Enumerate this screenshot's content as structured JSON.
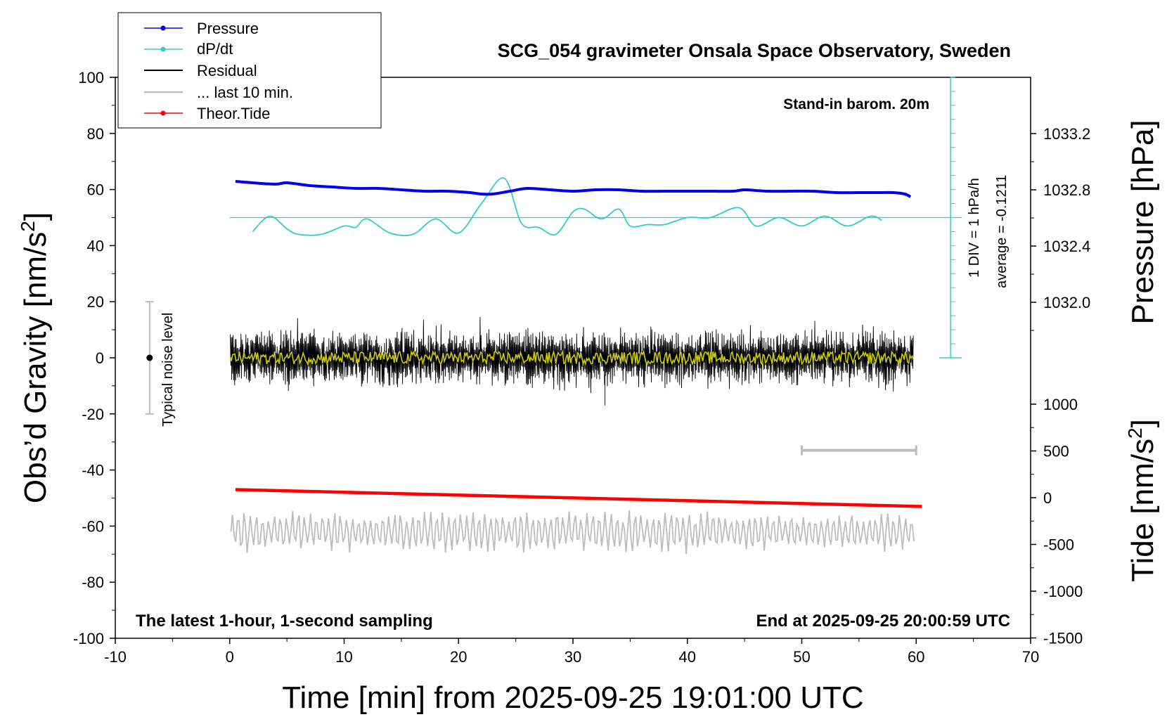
{
  "chart_data": {
    "type": "line",
    "title": "SCG_054 gravimeter Onsala Space Observatory, Sweden",
    "xlabel": "Time [min] from 2025-09-25 19:01:00 UTC",
    "ylabel_left": "Obs’d Gravity [nm/s",
    "ylabel_left_sup": "2",
    "ylabel_left_close": "]",
    "ylabel_right_top": "Pressure [hPa]",
    "ylabel_right_bottom": "Tide [nm/s",
    "ylabel_right_bottom_sup": "2",
    "ylabel_right_bottom_close": "]",
    "xlim": [
      -10,
      70
    ],
    "ylim_left": [
      -100,
      100
    ],
    "x_ticks": [
      "-10",
      "0",
      "10",
      "20",
      "30",
      "40",
      "50",
      "60",
      "70"
    ],
    "y_left_ticks": [
      "100",
      "80",
      "60",
      "40",
      "20",
      "0",
      "-20",
      "-40",
      "-60",
      "-80",
      "-100"
    ],
    "pressure_ticks": [
      "1033.2",
      "1032.8",
      "1032.4",
      "1032.0"
    ],
    "tide_ticks": [
      "1000",
      "500",
      "0",
      "-500",
      "-1000",
      "-1500"
    ],
    "annotations": {
      "baro": "Stand-in barom. 20m",
      "bottom_left": "The latest 1-hour, 1-second sampling",
      "bottom_right": "End at 2025-09-25 20:00:59 UTC",
      "div": "1 DIV = 1 hPa/h",
      "average": "average = -0.1211",
      "noise": "Typical noise level"
    },
    "legend": [
      "Pressure",
      "dP/dt",
      "Residual",
      "... last 10 min.",
      "Theor.Tide"
    ],
    "legend_placement": "top-left",
    "grid": false,
    "series": [
      {
        "name": "Pressure",
        "unit": "hPa",
        "color": "#0000ee",
        "x": [
          0.5,
          2,
          4,
          5,
          7,
          9,
          11,
          13,
          15,
          17,
          19,
          21,
          22,
          23,
          24.5,
          26,
          28,
          30,
          32,
          34,
          36,
          38,
          40,
          42,
          44,
          45,
          47,
          49,
          51,
          53,
          55,
          57,
          58,
          59,
          59.5
        ],
        "y": [
          1032.86,
          1032.85,
          1032.84,
          1032.85,
          1032.83,
          1032.82,
          1032.81,
          1032.81,
          1032.8,
          1032.79,
          1032.79,
          1032.78,
          1032.77,
          1032.77,
          1032.79,
          1032.81,
          1032.8,
          1032.79,
          1032.8,
          1032.8,
          1032.79,
          1032.79,
          1032.79,
          1032.79,
          1032.79,
          1032.8,
          1032.79,
          1032.79,
          1032.79,
          1032.78,
          1032.78,
          1032.78,
          1032.78,
          1032.77,
          1032.75
        ]
      },
      {
        "name": "dP/dt",
        "unit": "nm/s2 scale",
        "color": "#33cccc",
        "x": [
          2,
          3.5,
          5,
          6,
          8,
          10,
          11,
          12,
          14,
          16,
          18,
          20,
          22,
          24,
          25.5,
          27,
          28.5,
          30,
          31,
          32.5,
          34,
          35,
          36.5,
          38,
          40,
          42,
          44.5,
          46,
          48,
          50,
          52,
          54,
          56,
          57
        ],
        "y": [
          45,
          50.5,
          46,
          44,
          44,
          47,
          46.5,
          49.5,
          44.5,
          44,
          49.5,
          44.5,
          55,
          64,
          48,
          46.5,
          44,
          52,
          53,
          49.5,
          53,
          47,
          47.5,
          47.5,
          50,
          50,
          53.5,
          47,
          50,
          47,
          50.5,
          47,
          50.5,
          49
        ]
      },
      {
        "name": "Theor.Tide",
        "unit": "nm/s2",
        "color": "#ff0000",
        "x": [
          0.5,
          60.5
        ],
        "y": [
          -47,
          -53
        ]
      }
    ],
    "reference_lines": {
      "dPdt_zero": 50
    },
    "noise_bar": {
      "x": -7,
      "center": 0,
      "half_range": 20
    },
    "last10_bar": {
      "x_start": 50,
      "x_end": 60,
      "y": -33
    }
  }
}
